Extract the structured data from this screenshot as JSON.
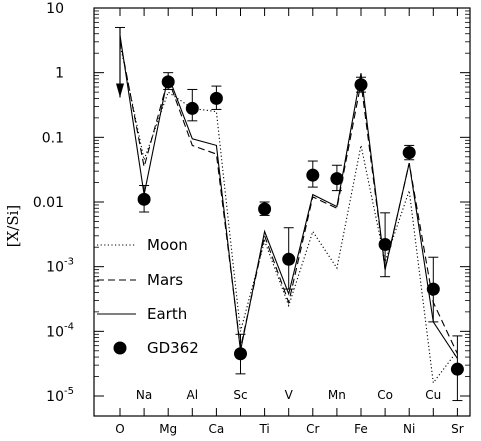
{
  "chart_data": {
    "type": "line",
    "xlabel": "",
    "ylabel": "[X/Si]",
    "y_scale": "log",
    "ylim": [
      1e-05,
      10
    ],
    "yticks": [
      {
        "value": 10,
        "label": "10"
      },
      {
        "value": 1,
        "label": "1"
      },
      {
        "value": 0.1,
        "label": "0.1"
      },
      {
        "value": 0.01,
        "label": "0.01"
      },
      {
        "value": 0.001,
        "label": "10",
        "exp": "-3"
      },
      {
        "value": 0.0001,
        "label": "10",
        "exp": "-4"
      },
      {
        "value": 1e-05,
        "label": "10",
        "exp": "-5"
      }
    ],
    "categories": [
      "O",
      "Na",
      "Mg",
      "Al",
      "Ca",
      "Sc",
      "Ti",
      "V",
      "Cr",
      "Mn",
      "Fe",
      "Co",
      "Ni",
      "Cu",
      "Sr"
    ],
    "bottom_tick_labels": [
      "O",
      "Mg",
      "Ca",
      "Ti",
      "Cr",
      "Fe",
      "Ni",
      "Sr"
    ],
    "inner_tick_labels": [
      "Na",
      "Al",
      "Sc",
      "V",
      "Mn",
      "Co",
      "Cu"
    ],
    "series": [
      {
        "name": "Moon",
        "style": "dotted",
        "values": [
          2.8,
          0.045,
          0.5,
          0.28,
          0.25,
          0.0001,
          0.0025,
          0.00025,
          0.0035,
          0.00095,
          0.075,
          0.0012,
          0.015,
          1.6e-05,
          5e-05
        ]
      },
      {
        "name": "Mars",
        "style": "dashed",
        "values": [
          3.2,
          0.035,
          0.8,
          0.075,
          0.055,
          5.5e-05,
          0.003,
          0.00028,
          0.012,
          0.008,
          0.7,
          0.0009,
          0.04,
          0.00028,
          4.5e-05
        ]
      },
      {
        "name": "Earth",
        "style": "solid",
        "values": [
          3.8,
          0.013,
          0.9,
          0.095,
          0.075,
          5e-05,
          0.0035,
          0.00038,
          0.013,
          0.0085,
          0.98,
          0.0009,
          0.04,
          0.00014,
          3.8e-05
        ]
      }
    ],
    "gd362": {
      "name": "GD362",
      "points": [
        {
          "x": "Na",
          "y": 0.011,
          "lo": 0.007,
          "hi": 0.018
        },
        {
          "x": "Mg",
          "y": 0.72,
          "lo": 0.55,
          "hi": 1.0
        },
        {
          "x": "Al",
          "y": 0.28,
          "lo": 0.18,
          "hi": 0.55
        },
        {
          "x": "Ca",
          "y": 0.4,
          "lo": 0.27,
          "hi": 0.62
        },
        {
          "x": "Sc",
          "y": 4.5e-05,
          "lo": 2.2e-05,
          "hi": 9e-05
        },
        {
          "x": "Ti",
          "y": 0.0078,
          "lo": 0.0062,
          "hi": 0.01
        },
        {
          "x": "V",
          "y": 0.0013,
          "lo": 0.00045,
          "hi": 0.004
        },
        {
          "x": "Cr",
          "y": 0.026,
          "lo": 0.017,
          "hi": 0.043
        },
        {
          "x": "Mn",
          "y": 0.023,
          "lo": 0.015,
          "hi": 0.037
        },
        {
          "x": "Fe",
          "y": 0.65,
          "lo": 0.5,
          "hi": 0.85
        },
        {
          "x": "Co",
          "y": 0.0022,
          "lo": 0.0007,
          "hi": 0.0068
        },
        {
          "x": "Ni",
          "y": 0.058,
          "lo": 0.045,
          "hi": 0.075
        },
        {
          "x": "Cu",
          "y": 0.00045,
          "lo": 0.00014,
          "hi": 0.0014
        },
        {
          "x": "Sr",
          "y": 2.6e-05,
          "lo": 8.5e-06,
          "hi": 8.5e-05
        }
      ],
      "upper_limit": {
        "x": "O",
        "y": 5
      }
    },
    "legend": {
      "placement": "bottom-left",
      "entries": [
        "Moon",
        "Mars",
        "Earth",
        "GD362"
      ]
    },
    "grid": false
  }
}
